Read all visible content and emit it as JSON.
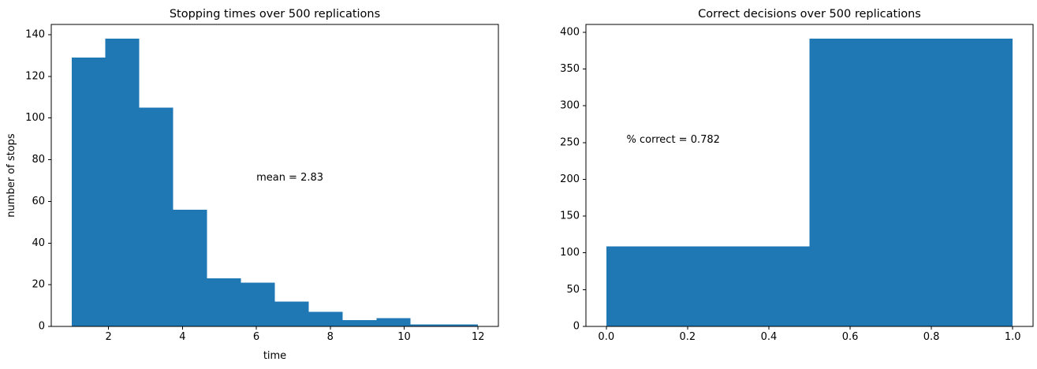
{
  "figure": {
    "background": "#ffffff",
    "bar_color": "#1f77b4",
    "text_color": "#000000",
    "spine_color": "#000000"
  },
  "chart_data": [
    {
      "type": "histogram",
      "title": "Stopping times over 500 replications",
      "xlabel": "time",
      "ylabel": "number of stops",
      "bin_edges": [
        1.0,
        1.91667,
        2.83333,
        3.75,
        4.66667,
        5.58333,
        6.5,
        7.41667,
        8.33333,
        9.25,
        10.16667,
        11.08333,
        12.0
      ],
      "counts": [
        129,
        138,
        105,
        56,
        23,
        21,
        12,
        7,
        3,
        4,
        1,
        1
      ],
      "total_replications": 500,
      "xticks": {
        "values": [
          2,
          4,
          6,
          8,
          10,
          12
        ],
        "labels": [
          "2",
          "4",
          "6",
          "8",
          "10",
          "12"
        ]
      },
      "yticks": {
        "values": [
          0,
          20,
          40,
          60,
          80,
          100,
          120,
          140
        ],
        "labels": [
          "0",
          "20",
          "40",
          "60",
          "80",
          "100",
          "120",
          "140"
        ]
      },
      "xlim": [
        0.45,
        12.55
      ],
      "ylim": [
        0,
        144.9
      ],
      "grid": false,
      "legend": null,
      "annotation": {
        "text": "mean = 2.83",
        "x": 6.0,
        "y": 70
      }
    },
    {
      "type": "histogram",
      "title": "Correct decisions over 500 replications",
      "xlabel": "",
      "ylabel": "",
      "bin_edges": [
        0.0,
        0.5,
        1.0
      ],
      "counts": [
        109,
        391
      ],
      "total_replications": 500,
      "xticks": {
        "values": [
          0.0,
          0.2,
          0.4,
          0.6,
          0.8,
          1.0
        ],
        "labels": [
          "0.0",
          "0.2",
          "0.4",
          "0.6",
          "0.8",
          "1.0"
        ]
      },
      "yticks": {
        "values": [
          0,
          50,
          100,
          150,
          200,
          250,
          300,
          350,
          400
        ],
        "labels": [
          "0",
          "50",
          "100",
          "150",
          "200",
          "250",
          "300",
          "350",
          "400"
        ]
      },
      "xlim": [
        -0.05,
        1.05
      ],
      "ylim": [
        0,
        410.55
      ],
      "grid": false,
      "legend": null,
      "annotation": {
        "text": "% correct = 0.782",
        "x": 0.05,
        "y": 250
      }
    }
  ]
}
